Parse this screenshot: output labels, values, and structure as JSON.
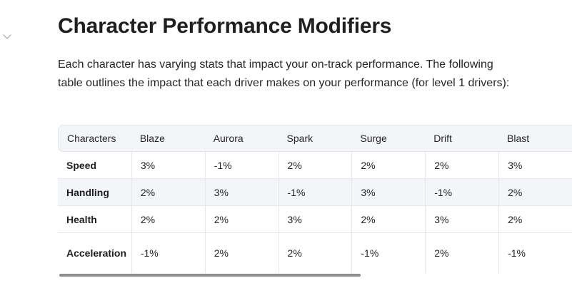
{
  "heading": "Character Performance Modifiers",
  "intro": "Each character has varying stats that impact your on-track performance. The following table outlines the impact that each driver makes on your performance (for level 1 drivers):",
  "table": {
    "header_label": "Characters",
    "columns": [
      "Blaze",
      "Aurora",
      "Spark",
      "Surge",
      "Drift",
      "Blast"
    ],
    "rows": [
      {
        "label": "Speed",
        "values": [
          "3%",
          "-1%",
          "2%",
          "2%",
          "2%",
          "3%"
        ]
      },
      {
        "label": "Handling",
        "values": [
          "2%",
          "3%",
          "-1%",
          "3%",
          "-1%",
          "2%"
        ]
      },
      {
        "label": "Health",
        "values": [
          "2%",
          "2%",
          "3%",
          "2%",
          "3%",
          "2%"
        ]
      },
      {
        "label": "Acceleration",
        "values": [
          "-1%",
          "2%",
          "2%",
          "-1%",
          "2%",
          "-1%"
        ]
      }
    ]
  },
  "scrollbar": {
    "scroll_position_fraction": 0.0,
    "visible_fraction": 0.66
  }
}
